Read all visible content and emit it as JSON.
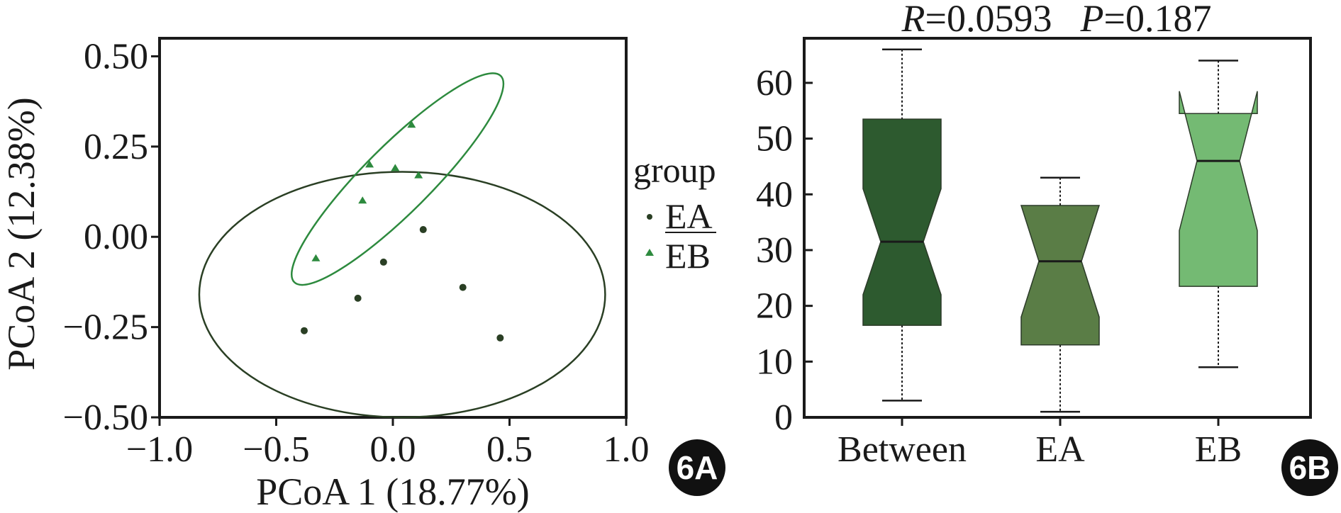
{
  "chart_data": [
    {
      "panel": "6A",
      "type": "scatter",
      "xlabel": "PCoA 1 (18.77%)",
      "ylabel": "PCoA 2 (12.38%)",
      "xlim": [
        -1.0,
        1.0
      ],
      "ylim": [
        -0.5,
        0.55
      ],
      "xticks": [
        -1.0,
        -0.5,
        0.0,
        0.5,
        1.0
      ],
      "xtick_labels": [
        "−1.0",
        "−0.5",
        "0.0",
        "0.5",
        "1.0"
      ],
      "yticks": [
        -0.5,
        -0.25,
        0.0,
        0.25,
        0.5
      ],
      "ytick_labels": [
        "−0.50",
        "−0.25",
        "0.00",
        "0.25",
        "0.50"
      ],
      "legend": {
        "title": "group",
        "placement": "right"
      },
      "series": [
        {
          "name": "EA",
          "marker": "circle",
          "color": "#2a3f24",
          "points": [
            [
              0.13,
              0.02
            ],
            [
              -0.04,
              -0.07
            ],
            [
              -0.15,
              -0.17
            ],
            [
              0.3,
              -0.14
            ],
            [
              -0.38,
              -0.26
            ],
            [
              0.46,
              -0.28
            ]
          ],
          "ellipse": {
            "cx": 0.04,
            "cy": -0.16,
            "rx": 0.87,
            "ry": 0.34,
            "angle_deg": 0
          }
        },
        {
          "name": "EB",
          "marker": "triangle",
          "color": "#2d8a3e",
          "points": [
            [
              0.08,
              0.31
            ],
            [
              -0.1,
              0.2
            ],
            [
              0.01,
              0.19
            ],
            [
              0.11,
              0.17
            ],
            [
              -0.13,
              0.1
            ],
            [
              -0.33,
              -0.06
            ]
          ],
          "ellipse": {
            "cx": 0.02,
            "cy": 0.16,
            "rx": 0.48,
            "ry": 0.11,
            "angle_deg": 45
          }
        }
      ]
    },
    {
      "panel": "6B",
      "type": "box",
      "title_stat": {
        "R": "0.0593",
        "P": "0.187"
      },
      "categories": [
        "Between",
        "EA",
        "EB"
      ],
      "ylim": [
        0,
        68
      ],
      "yticks": [
        0,
        10,
        20,
        30,
        40,
        50,
        60
      ],
      "ytick_labels": [
        "0",
        "10",
        "20",
        "30",
        "40",
        "50",
        "60"
      ],
      "boxes": [
        {
          "name": "Between",
          "min": 3,
          "q1": 16.5,
          "median": 31.5,
          "q3": 53.5,
          "max": 66,
          "notch_low": 22,
          "notch_high": 41,
          "color": "#2d5a2f"
        },
        {
          "name": "EA",
          "min": 1,
          "q1": 13,
          "median": 28,
          "q3": 38,
          "max": 43,
          "notch_low": 18,
          "notch_high": 38,
          "color": "#5a7d46"
        },
        {
          "name": "EB",
          "min": 9,
          "q1": 23.5,
          "median": 46,
          "q3": 54.5,
          "max": 64,
          "notch_low": 33.5,
          "notch_high": 58.5,
          "color": "#74ba73"
        }
      ]
    }
  ],
  "badges": {
    "left": "6A",
    "right": "6B"
  },
  "stat_text": {
    "r_label": "R",
    "r_value": "=0.0593",
    "p_label": "P",
    "p_value": "=0.187"
  }
}
